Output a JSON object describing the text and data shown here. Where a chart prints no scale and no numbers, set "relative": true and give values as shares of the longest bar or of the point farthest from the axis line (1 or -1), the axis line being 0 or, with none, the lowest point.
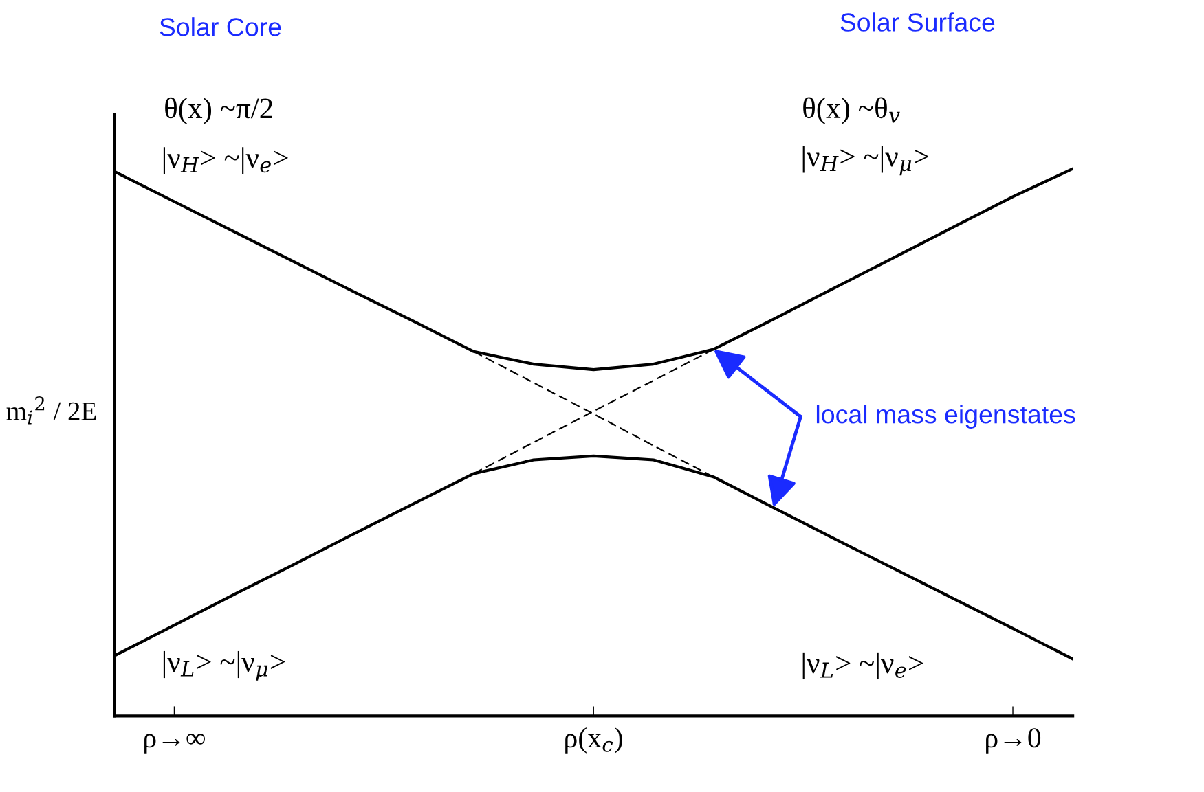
{
  "chart_data": {
    "type": "line",
    "relative": true,
    "ylabel": "m$_{i}$$^{2}$ / 2E",
    "categories": [
      null,
      "ρ→∞",
      null,
      null,
      null,
      null,
      null,
      null,
      "ρ(x$_{c}$)",
      null,
      null,
      null,
      null,
      null,
      null,
      "ρ→0",
      null
    ],
    "series": [
      {
        "color": "#000000",
        "values": [
          0.995,
          0.94,
          0.885,
          0.83,
          0.775,
          0.721,
          0.666,
          0.643,
          0.633,
          0.643,
          0.67,
          0.725,
          0.781,
          0.837,
          0.893,
          0.949,
          1.0
        ]
      },
      {
        "color": "#000000",
        "values": [
          0.11,
          0.166,
          0.222,
          0.277,
          0.333,
          0.388,
          0.443,
          0.468,
          0.475,
          0.468,
          0.437,
          0.381,
          0.325,
          0.27,
          0.215,
          0.16,
          0.104
        ]
      },
      {
        "color": "#000000",
        "line_style": "dashed",
        "values": [
          null,
          null,
          null,
          null,
          null,
          null,
          0.666,
          0.609,
          0.552,
          0.494,
          0.437,
          null,
          null,
          null,
          null,
          null,
          null
        ]
      },
      {
        "color": "#000000",
        "line_style": "dashed",
        "values": [
          null,
          null,
          null,
          null,
          null,
          null,
          0.443,
          0.5,
          0.557,
          0.613,
          0.67,
          null,
          null,
          null,
          null,
          null,
          null
        ]
      }
    ],
    "annotations": [
      "Solar Core",
      "Solar Surface",
      "θ(x) ~π/2",
      "|ν$_{H}$> ~|ν$_{e}$>",
      "θ(x) ~θ$_{v}$",
      "|ν$_{H}$> ~|ν$_{μ}$>",
      "|ν$_{L}$> ~|ν$_{μ}$>",
      "|ν$_{L}$> ~|ν$_{e}$>",
      "local mass eigenstates"
    ]
  }
}
